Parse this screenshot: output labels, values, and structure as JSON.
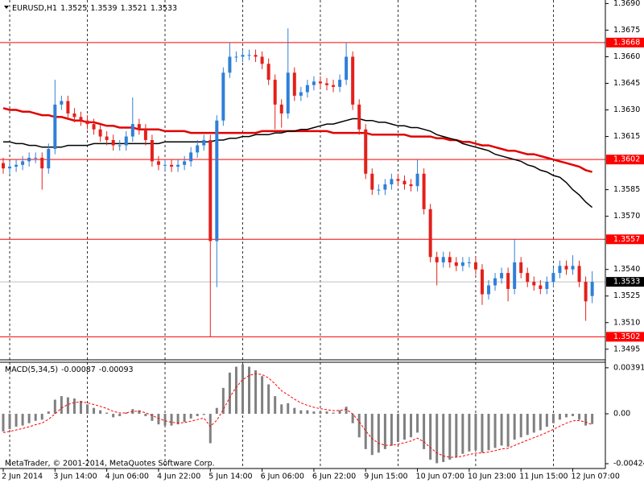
{
  "chart_data": [
    {
      "type": "candlestick",
      "symbol": "EURUSD,H1",
      "categories": [
        "2 Jun 2014",
        null,
        null,
        null,
        null,
        null,
        null,
        null,
        "3 Jun 14:00",
        null,
        null,
        null,
        null,
        null,
        null,
        null,
        "4 Jun 06:00",
        null,
        null,
        null,
        null,
        null,
        null,
        null,
        "4 Jun 22:00",
        null,
        null,
        null,
        null,
        null,
        null,
        null,
        "5 Jun 14:00",
        null,
        null,
        null,
        null,
        null,
        null,
        null,
        "6 Jun 06:00",
        null,
        null,
        null,
        null,
        null,
        null,
        null,
        "6 Jun 22:00",
        null,
        null,
        null,
        null,
        null,
        null,
        null,
        "9 Jun 15:00",
        null,
        null,
        null,
        null,
        null,
        null,
        null,
        "10 Jun 07:00",
        null,
        null,
        null,
        null,
        null,
        null,
        null,
        "10 Jun 23:00",
        null,
        null,
        null,
        null,
        null,
        null,
        null,
        "11 Jun 15:00",
        null,
        null,
        null,
        null,
        null,
        null,
        null,
        "12 Jun 07:00",
        null,
        null,
        null
      ],
      "open": [
        1.36,
        1.3597,
        1.3598,
        1.3599,
        1.3601,
        1.3603,
        1.3603,
        1.3597,
        1.3608,
        1.3633,
        1.3635,
        1.3628,
        1.3626,
        1.3624,
        1.3622,
        1.3619,
        1.3615,
        1.3613,
        1.361,
        1.361,
        1.3615,
        1.3622,
        1.3619,
        1.3613,
        1.3601,
        1.3599,
        1.3599,
        1.3598,
        1.3599,
        1.3601,
        1.3606,
        1.361,
        1.3613,
        1.3556,
        1.3624,
        1.3651,
        1.366,
        1.366,
        1.3661,
        1.3661,
        1.366,
        1.3656,
        1.3647,
        1.3633,
        1.3628,
        1.3651,
        1.3638,
        1.364,
        1.3644,
        1.3646,
        1.3645,
        1.3644,
        1.3643,
        1.3647,
        1.366,
        1.3633,
        1.3619,
        1.3594,
        1.3585,
        1.3585,
        1.3588,
        1.3591,
        1.359,
        1.3588,
        1.3587,
        1.3594,
        1.3574,
        1.3547,
        1.3544,
        1.3547,
        1.3544,
        1.3542,
        1.3544,
        1.3544,
        1.354,
        1.3526,
        1.3531,
        1.3535,
        1.3538,
        1.3529,
        1.3544,
        1.3538,
        1.3533,
        1.3531,
        1.3529,
        1.3533,
        1.3538,
        1.3542,
        1.354,
        1.3542,
        1.3533,
        1.3525
      ],
      "high": [
        1.3603,
        1.3601,
        1.3602,
        1.3604,
        1.3606,
        1.3606,
        1.3606,
        1.3611,
        1.3647,
        1.3638,
        1.3638,
        1.3631,
        1.3629,
        1.3627,
        1.3625,
        1.3622,
        1.3618,
        1.3616,
        1.3613,
        1.3618,
        1.3637,
        1.3625,
        1.3622,
        1.3616,
        1.3604,
        1.3602,
        1.3602,
        1.3602,
        1.3604,
        1.3609,
        1.3613,
        1.3616,
        1.3616,
        1.3627,
        1.3654,
        1.3668,
        1.3663,
        1.3664,
        1.3664,
        1.3664,
        1.3663,
        1.3659,
        1.365,
        1.3636,
        1.3676,
        1.3654,
        1.3643,
        1.3647,
        1.3649,
        1.3649,
        1.3648,
        1.3647,
        1.365,
        1.3668,
        1.3663,
        1.3636,
        1.3622,
        1.3597,
        1.3588,
        1.3591,
        1.3594,
        1.3594,
        1.3593,
        1.3591,
        1.3602,
        1.3597,
        1.3577,
        1.355,
        1.355,
        1.355,
        1.3547,
        1.3547,
        1.3547,
        1.3547,
        1.3543,
        1.3534,
        1.3538,
        1.3541,
        1.3541,
        1.3557,
        1.3547,
        1.3541,
        1.3536,
        1.3534,
        1.3536,
        1.3541,
        1.3545,
        1.3545,
        1.3548,
        1.3545,
        1.3536,
        1.3539
      ],
      "low": [
        1.3594,
        1.3594,
        1.3595,
        1.3596,
        1.3598,
        1.36,
        1.3585,
        1.3594,
        1.3605,
        1.363,
        1.3625,
        1.3623,
        1.3621,
        1.3619,
        1.3616,
        1.3612,
        1.361,
        1.3607,
        1.3607,
        1.3607,
        1.3612,
        1.3616,
        1.361,
        1.3598,
        1.3596,
        1.3596,
        1.3595,
        1.3595,
        1.3596,
        1.3598,
        1.3603,
        1.3607,
        1.3502,
        1.353,
        1.3621,
        1.3648,
        1.3657,
        1.3657,
        1.3658,
        1.3657,
        1.3653,
        1.3644,
        1.3619,
        1.362,
        1.3625,
        1.3635,
        1.3635,
        1.3637,
        1.3641,
        1.3642,
        1.3641,
        1.364,
        1.364,
        1.3644,
        1.363,
        1.3616,
        1.3591,
        1.3582,
        1.3582,
        1.3582,
        1.3585,
        1.3587,
        1.3585,
        1.3584,
        1.3584,
        1.3571,
        1.3544,
        1.3531,
        1.3541,
        1.3541,
        1.3539,
        1.3539,
        1.3541,
        1.3537,
        1.352,
        1.3523,
        1.3528,
        1.3532,
        1.3522,
        1.3526,
        1.3535,
        1.353,
        1.3528,
        1.3526,
        1.3526,
        1.353,
        1.3535,
        1.3537,
        1.3537,
        1.353,
        1.3511,
        1.3521
      ],
      "close": [
        1.3597,
        1.3598,
        1.3599,
        1.3601,
        1.3603,
        1.3603,
        1.3597,
        1.3608,
        1.3633,
        1.3635,
        1.3628,
        1.3626,
        1.3624,
        1.3622,
        1.3619,
        1.3615,
        1.3613,
        1.361,
        1.361,
        1.3615,
        1.3622,
        1.3619,
        1.3613,
        1.3601,
        1.3599,
        1.3599,
        1.3598,
        1.3599,
        1.3601,
        1.3606,
        1.361,
        1.3613,
        1.3556,
        1.3624,
        1.3651,
        1.366,
        1.366,
        1.3661,
        1.3661,
        1.366,
        1.3656,
        1.3647,
        1.3633,
        1.3628,
        1.3651,
        1.3638,
        1.364,
        1.3644,
        1.3646,
        1.3645,
        1.3644,
        1.3643,
        1.3647,
        1.366,
        1.3633,
        1.3619,
        1.3594,
        1.3585,
        1.3585,
        1.3588,
        1.3591,
        1.359,
        1.3588,
        1.3587,
        1.3594,
        1.3574,
        1.3547,
        1.3544,
        1.3547,
        1.3544,
        1.3542,
        1.3544,
        1.3544,
        1.354,
        1.3526,
        1.3531,
        1.3535,
        1.3538,
        1.3529,
        1.3544,
        1.3538,
        1.3533,
        1.3531,
        1.3529,
        1.3533,
        1.3538,
        1.3542,
        1.354,
        1.3542,
        1.3533,
        1.3522,
        1.3533
      ],
      "bull_color": "#2f7fd8",
      "bear_color": "#e3201b",
      "series": [
        {
          "color": "#e00000",
          "values": [
            1.3631,
            1.363,
            1.363,
            1.3629,
            1.3629,
            1.3628,
            1.3627,
            1.3627,
            1.3626,
            1.3626,
            1.3625,
            1.3624,
            1.3624,
            1.3623,
            1.3623,
            1.3622,
            1.3621,
            1.3621,
            1.362,
            1.362,
            1.362,
            1.3619,
            1.3619,
            1.3619,
            1.3619,
            1.3618,
            1.3618,
            1.3618,
            1.3618,
            1.3617,
            1.3617,
            1.3617,
            1.3617,
            1.3617,
            1.3617,
            1.3617,
            1.3617,
            1.3617,
            1.3617,
            1.3617,
            1.3618,
            1.3618,
            1.3618,
            1.3618,
            1.3618,
            1.3618,
            1.3618,
            1.3618,
            1.3618,
            1.3618,
            1.3618,
            1.3617,
            1.3617,
            1.3617,
            1.3617,
            1.3617,
            1.3617,
            1.3616,
            1.3616,
            1.3616,
            1.3616,
            1.3616,
            1.3616,
            1.3615,
            1.3615,
            1.3615,
            1.3615,
            1.3614,
            1.3614,
            1.3613,
            1.3613,
            1.3612,
            1.3612,
            1.3611,
            1.361,
            1.361,
            1.3609,
            1.3608,
            1.3607,
            1.3607,
            1.3606,
            1.3605,
            1.3605,
            1.3604,
            1.3603,
            1.3602,
            1.3601,
            1.36,
            1.3599,
            1.3598,
            1.3596,
            1.3595
          ]
        },
        {
          "color": "#000000",
          "values": [
            1.3612,
            1.3612,
            1.3611,
            1.3611,
            1.361,
            1.361,
            1.3609,
            1.3609,
            1.3609,
            1.3609,
            1.361,
            1.361,
            1.361,
            1.361,
            1.3611,
            1.3611,
            1.3611,
            1.3611,
            1.3611,
            1.3611,
            1.3611,
            1.3611,
            1.3611,
            1.3611,
            1.3611,
            1.3612,
            1.3612,
            1.3612,
            1.3612,
            1.3612,
            1.3612,
            1.3612,
            1.3612,
            1.3613,
            1.3613,
            1.3614,
            1.3614,
            1.3615,
            1.3615,
            1.3616,
            1.3616,
            1.3616,
            1.3617,
            1.3617,
            1.3618,
            1.3618,
            1.3619,
            1.3619,
            1.362,
            1.3621,
            1.3622,
            1.3622,
            1.3623,
            1.3624,
            1.3625,
            1.3625,
            1.3624,
            1.3624,
            1.3623,
            1.3623,
            1.3622,
            1.3621,
            1.3621,
            1.362,
            1.362,
            1.3619,
            1.3618,
            1.3616,
            1.3615,
            1.3614,
            1.3613,
            1.3611,
            1.361,
            1.3609,
            1.3608,
            1.3607,
            1.3605,
            1.3604,
            1.3603,
            1.3602,
            1.3601,
            1.3599,
            1.3598,
            1.3596,
            1.3595,
            1.3593,
            1.3592,
            1.3589,
            1.3585,
            1.3582,
            1.3578,
            1.3575
          ]
        }
      ],
      "levels": [
        1.3668,
        1.3602,
        1.3557,
        1.3502
      ],
      "level_color": "#ff0000",
      "ylim": [
        1.3489,
        1.3692
      ],
      "yticks": [
        {
          "value": 1.369,
          "label": "1.3690"
        },
        {
          "value": 1.3675,
          "label": "1.3675"
        },
        {
          "value": 1.366,
          "label": "1.3660"
        },
        {
          "value": 1.3645,
          "label": "1.3645"
        },
        {
          "value": 1.363,
          "label": "1.3630"
        },
        {
          "value": 1.3615,
          "label": "1.3615"
        },
        {
          "value": 1.3585,
          "label": "1.3585"
        },
        {
          "value": 1.357,
          "label": "1.3570"
        },
        {
          "value": 1.354,
          "label": "1.3540"
        },
        {
          "value": 1.3525,
          "label": "1.3525"
        },
        {
          "value": 1.351,
          "label": "1.3510"
        },
        {
          "value": 1.3495,
          "label": "1.3495"
        }
      ],
      "copyright": "MetaTrader, © 2001-2014, MetaQuotes Software Corp."
    },
    {
      "type": "bar",
      "title": "MACD(5,34,5)",
      "color": "#808080",
      "values": [
        -0.0015,
        -0.0013,
        -0.0011,
        -0.001,
        -0.0008,
        -0.0006,
        -0.0005,
        0.0002,
        0.0012,
        0.0015,
        0.0014,
        0.0013,
        0.0011,
        0.0008,
        0.0005,
        0.0003,
        0.0001,
        -0.0003,
        -0.0002,
        0.0001,
        0.0004,
        0.0003,
        -0.0002,
        -0.0006,
        -0.0009,
        -0.001,
        -0.001,
        -0.0009,
        -0.0007,
        -0.0004,
        -0.0002,
        -0.0001,
        -0.0025,
        0.0005,
        0.0022,
        0.0035,
        0.004,
        0.0042,
        0.004,
        0.0037,
        0.0032,
        0.0025,
        0.0015,
        0.0008,
        0.0009,
        0.0005,
        0.0003,
        0.0003,
        0.0002,
        0.0002,
        0.0002,
        0.0001,
        0.0003,
        0.0006,
        -0.0008,
        -0.002,
        -0.003,
        -0.0035,
        -0.0033,
        -0.003,
        -0.0027,
        -0.0024,
        -0.0022,
        -0.002,
        -0.0016,
        -0.003,
        -0.0039,
        -0.0042,
        -0.0041,
        -0.0039,
        -0.0037,
        -0.0034,
        -0.0032,
        -0.0031,
        -0.0033,
        -0.0031,
        -0.0029,
        -0.0027,
        -0.0028,
        -0.0022,
        -0.002,
        -0.0018,
        -0.0016,
        -0.0014,
        -0.0011,
        -0.0008,
        -0.0005,
        -0.0003,
        -0.0002,
        -0.0005,
        -0.001,
        -0.00087
      ],
      "signal": {
        "color": "#ff0000",
        "values": [
          -0.0016,
          -0.0015,
          -0.00137,
          -0.00125,
          -0.0011,
          -0.00093,
          -0.00079,
          -0.00046,
          -1e-05,
          0.00049,
          0.00079,
          0.00096,
          0.00101,
          0.00094,
          0.00079,
          0.00063,
          0.00045,
          0.0002,
          7e-05,
          8e-05,
          0.00019,
          0.00023,
          9e-05,
          -0.00014,
          -0.00039,
          -0.00059,
          -0.00072,
          -0.00078,
          -0.00075,
          -0.00063,
          -0.00049,
          -0.00036,
          -0.00107,
          -0.00055,
          0.00036,
          0.0014,
          0.00226,
          0.0029,
          0.00326,
          0.0034,
          0.00333,
          0.00305,
          0.00254,
          0.00196,
          0.00161,
          0.00124,
          0.00093,
          0.00072,
          0.00055,
          0.00043,
          0.00035,
          0.00027,
          0.00028,
          0.00038,
          -1e-05,
          -0.00067,
          -0.00144,
          -0.00212,
          -0.00251,
          -0.00267,
          -0.00268,
          -0.00259,
          -0.00246,
          -0.00231,
          -0.00207,
          -0.00238,
          -0.00288,
          -0.00332,
          -0.00358,
          -0.00369,
          -0.00369,
          -0.00359,
          -0.00346,
          -0.00334,
          -0.00333,
          -0.00325,
          -0.00313,
          -0.00299,
          -0.00293,
          -0.00269,
          -0.00246,
          -0.00224,
          -0.00203,
          -0.00182,
          -0.00158,
          -0.00132,
          -0.00105,
          -0.0008,
          -0.0006,
          -0.00057,
          -0.00071,
          -0.00093
        ]
      },
      "ylim": [
        -0.00465,
        0.00438
      ],
      "yticks": [
        0.00391,
        {
          "value": 0,
          "label": "0.00"
        },
        -0.00424
      ]
    }
  ]
}
